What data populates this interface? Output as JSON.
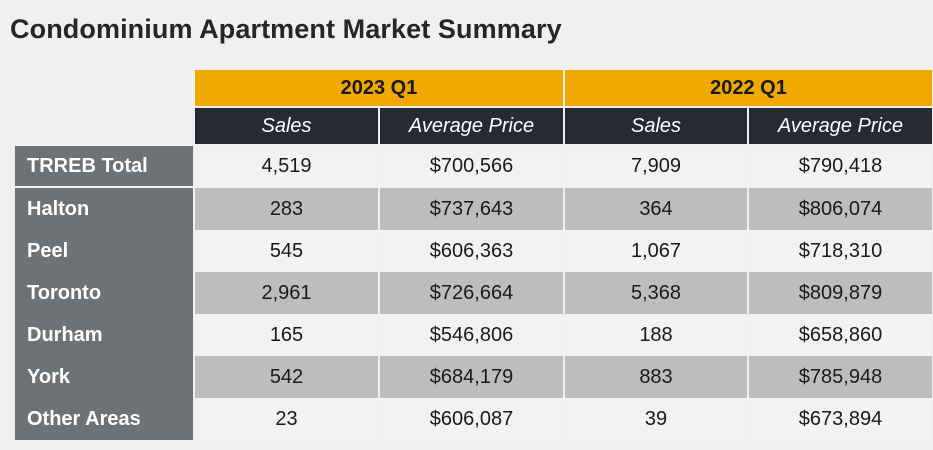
{
  "title": "Condominium Apartment Market Summary",
  "periods": [
    "2023 Q1",
    "2022 Q1"
  ],
  "columns": [
    "Sales",
    "Average Price",
    "Sales",
    "Average Price"
  ],
  "rows": [
    {
      "label": "TRREB Total",
      "values": [
        "4,519",
        "$700,566",
        "7,909",
        "$790,418"
      ]
    },
    {
      "label": "Halton",
      "values": [
        "283",
        "$737,643",
        "364",
        "$806,074"
      ]
    },
    {
      "label": "Peel",
      "values": [
        "545",
        "$606,363",
        "1,067",
        "$718,310"
      ]
    },
    {
      "label": "Toronto",
      "values": [
        "2,961",
        "$726,664",
        "5,368",
        "$809,879"
      ]
    },
    {
      "label": "Durham",
      "values": [
        "165",
        "$546,806",
        "188",
        "$658,860"
      ]
    },
    {
      "label": "York",
      "values": [
        "542",
        "$684,179",
        "883",
        "$785,948"
      ]
    },
    {
      "label": "Other Areas",
      "values": [
        "23",
        "$606,087",
        "39",
        "$673,894"
      ]
    }
  ],
  "colors": {
    "accent": "#f1a800",
    "header_dark": "#262a33",
    "row_label": "#6e7275",
    "row_light": "#f2f2f2",
    "row_dark": "#bdbdbd"
  }
}
